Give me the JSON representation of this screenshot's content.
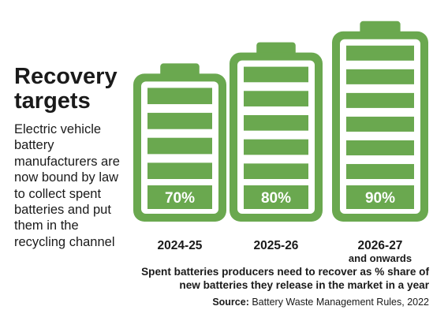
{
  "title": "Recovery targets",
  "subtitle": "Electric vehicle battery manufacturers are now bound by law to collect spent batteries and put them in the recycling channel",
  "chart_data": {
    "type": "bar",
    "style": "battery-icons",
    "categories": [
      "2024-25",
      "2025-26",
      "2026-27"
    ],
    "category_sublabels": [
      "",
      "",
      "and onwards"
    ],
    "values": [
      70,
      80,
      90
    ],
    "value_labels": [
      "70%",
      "80%",
      "90%"
    ],
    "unit": "%",
    "bar_color": "#6aa84f"
  },
  "note": "Spent batteries producers need to recover as % share of new batteries they release in the market in a year",
  "source": {
    "label": "Source:",
    "text": " Battery Waste Management Rules, 2022"
  }
}
